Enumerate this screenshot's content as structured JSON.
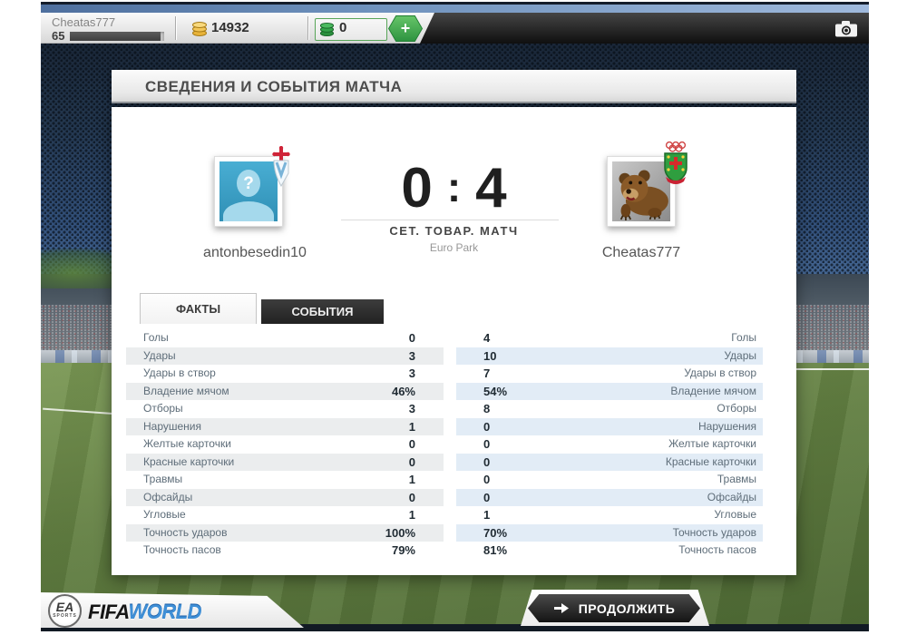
{
  "top_bar": {
    "username": "Cheatas777",
    "level": "65",
    "xp_progress": 0.96,
    "coins": "14932",
    "fifa_points": "0",
    "add_label": "+"
  },
  "panel": {
    "title": "СВЕДЕНИЯ И СОБЫТИЯ МАТЧА",
    "score": {
      "home": "0",
      "separator": ":",
      "away": "4"
    },
    "match_type": "СЕТ. ТОВАР. МАТЧ",
    "venue": "Euro Park",
    "home_player": "antonbesedin10",
    "away_player": "Cheatas777",
    "avatar_placeholder": "?",
    "tabs": {
      "facts": "ФАКТЫ",
      "events": "СОБЫТИЯ"
    },
    "stats": [
      {
        "label": "Голы",
        "home": "0",
        "away": "4"
      },
      {
        "label": "Удары",
        "home": "3",
        "away": "10"
      },
      {
        "label": "Удары в створ",
        "home": "3",
        "away": "7"
      },
      {
        "label": "Владение мячом",
        "home": "46%",
        "away": "54%"
      },
      {
        "label": "Отборы",
        "home": "3",
        "away": "8"
      },
      {
        "label": "Нарушения",
        "home": "1",
        "away": "0"
      },
      {
        "label": "Желтые карточки",
        "home": "0",
        "away": "0"
      },
      {
        "label": "Красные карточки",
        "home": "0",
        "away": "0"
      },
      {
        "label": "Травмы",
        "home": "1",
        "away": "0"
      },
      {
        "label": "Офсайды",
        "home": "0",
        "away": "0"
      },
      {
        "label": "Угловые",
        "home": "1",
        "away": "1"
      },
      {
        "label": "Точность ударов",
        "home": "100%",
        "away": "70%"
      },
      {
        "label": "Точность пасов",
        "home": "79%",
        "away": "81%"
      }
    ]
  },
  "footer": {
    "ea": "EA",
    "sports": "SPORTS",
    "fifa": "FIFA",
    "world": "WORLD",
    "continue_label": "ПРОДОЛЖИТЬ"
  },
  "icons": {
    "camera": "camera-icon",
    "gold_coins": "coin-stack-icon",
    "green_points": "fifa-points-icon",
    "plus": "plus-icon",
    "continue_arrow": "arrow-right-icon"
  },
  "colors": {
    "accent_green": "#2e9441",
    "world_blue": "#3f8fd6",
    "home_row_tint": "#ebedee",
    "away_row_tint": "#e2ecf6",
    "dark_bar": "#141414"
  }
}
